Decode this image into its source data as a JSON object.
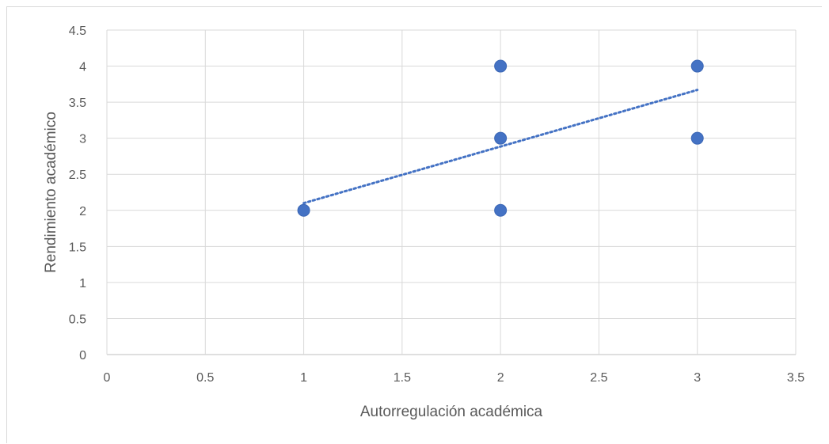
{
  "chart_data": {
    "type": "scatter",
    "title": "",
    "xlabel": "Autorregulación académica",
    "ylabel": "Rendimiento académico",
    "xlim": [
      0,
      3.5
    ],
    "ylim": [
      0,
      4.5
    ],
    "x_ticks": [
      "0",
      "0.5",
      "1",
      "1.5",
      "2",
      "2.5",
      "3",
      "3.5"
    ],
    "y_ticks": [
      "0",
      "0.5",
      "1",
      "1.5",
      "2",
      "2.5",
      "3",
      "3.5",
      "4",
      "4.5"
    ],
    "grid": true,
    "legend": "none",
    "series": [
      {
        "x": [
          1,
          2,
          2,
          2,
          3,
          3
        ],
        "y": [
          2,
          2,
          3,
          4,
          3,
          4
        ],
        "color": "#4472c4"
      }
    ],
    "trendline": {
      "style": "dotted",
      "color": "#4472c4",
      "x": [
        1,
        3
      ],
      "y": [
        2.1,
        3.67
      ]
    }
  }
}
